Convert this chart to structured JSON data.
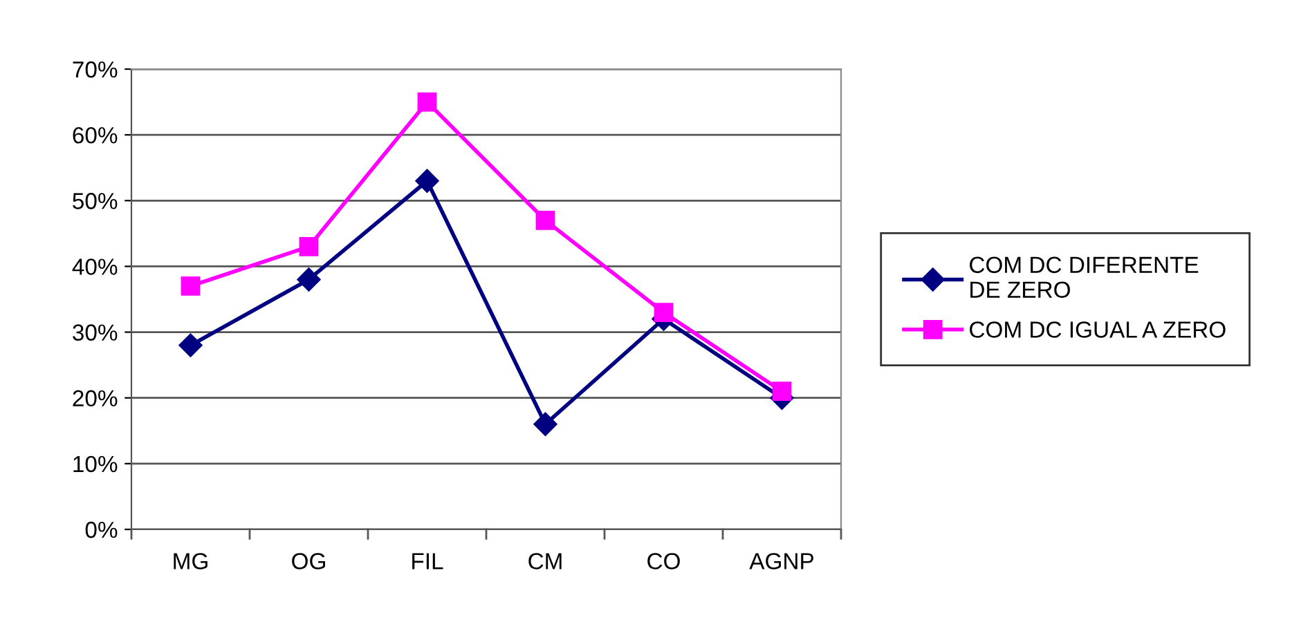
{
  "chart_data": {
    "type": "line",
    "categories": [
      "MG",
      "OG",
      "FIL",
      "CM",
      "CO",
      "AGNP"
    ],
    "series": [
      {
        "name": "COM DC DIFERENTE\nDE ZERO",
        "color": "#000080",
        "marker": "diamond",
        "values": [
          28,
          38,
          53,
          16,
          32,
          20
        ]
      },
      {
        "name": "COM DC IGUAL A ZERO",
        "color": "#ff00ff",
        "marker": "square",
        "values": [
          37,
          43,
          65,
          47,
          33,
          21
        ]
      }
    ],
    "ylim": [
      0,
      70
    ],
    "yticks": [
      {
        "value": 0,
        "label": "0%"
      },
      {
        "value": 10,
        "label": "10%"
      },
      {
        "value": 20,
        "label": "20%"
      },
      {
        "value": 30,
        "label": "30%"
      },
      {
        "value": 40,
        "label": "40%"
      },
      {
        "value": 50,
        "label": "50%"
      },
      {
        "value": 60,
        "label": "60%"
      },
      {
        "value": 70,
        "label": "70%"
      }
    ],
    "grid": "y",
    "legend": "right",
    "line_style": "solid"
  }
}
